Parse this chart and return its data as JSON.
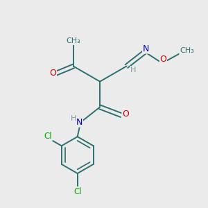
{
  "background_color": "#ebebeb",
  "bond_color": "#2d6e6e",
  "atom_colors": {
    "O": "#cc0000",
    "N": "#0000cc",
    "Cl": "#00aa00",
    "H": "#7a9a9a"
  },
  "figsize": [
    3.0,
    3.0
  ],
  "dpi": 100,
  "bond_lw": 1.4,
  "font_size": 8.5
}
